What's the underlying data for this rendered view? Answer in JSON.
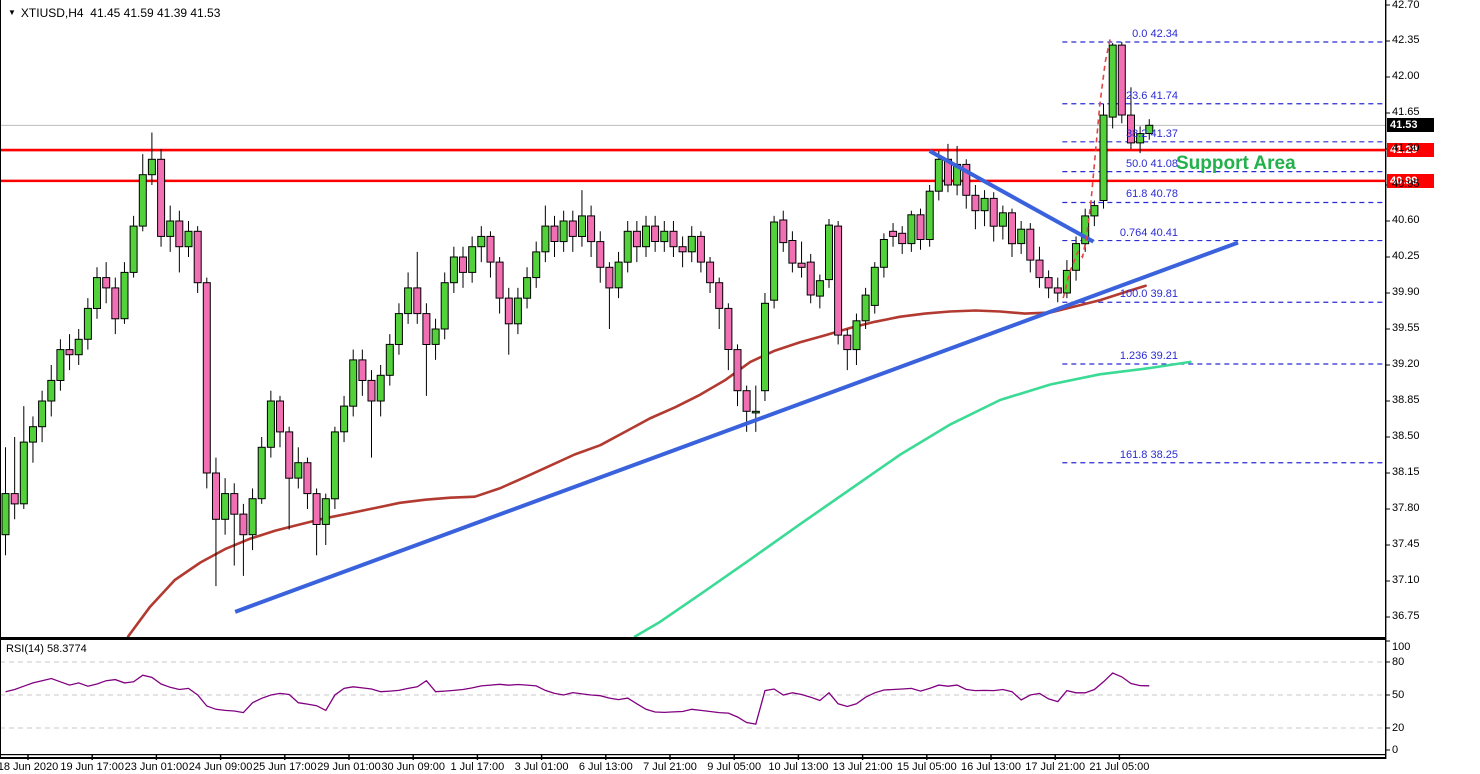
{
  "header": {
    "collapse_icon": "▼",
    "symbol": "XTIUSD,H4",
    "ohlc": "41.45 41.59 41.39 41.53"
  },
  "chart_data": {
    "type": "candlestick",
    "title": "XTIUSD H4 chart with RSI",
    "price_axis_ticks": [
      42.7,
      42.35,
      42.0,
      41.65,
      41.3,
      40.95,
      40.6,
      40.25,
      39.9,
      39.55,
      39.2,
      38.85,
      38.5,
      38.15,
      37.8,
      37.45,
      37.1,
      36.75
    ],
    "time_axis_labels": [
      "18 Jun 2020",
      "19 Jun 17:00",
      "23 Jun 01:00",
      "24 Jun 09:00",
      "25 Jun 17:00",
      "29 Jun 01:00",
      "30 Jun 09:00",
      "1 Jul 17:00",
      "3 Jul 01:00",
      "6 Jul 13:00",
      "7 Jul 21:00",
      "9 Jul 05:00",
      "10 Jul 13:00",
      "13 Jul 21:00",
      "15 Jul 05:00",
      "16 Jul 13:00",
      "17 Jul 21:00",
      "21 Jul 05:00"
    ],
    "current_price": 41.53,
    "price_badges": {
      "current": "41.53",
      "upper": "41.29",
      "lower": "40.99"
    },
    "horizontal_lines": [
      {
        "price": 41.29
      },
      {
        "price": 40.99
      }
    ],
    "support_area": {
      "text": "Support Area",
      "color": "#22B14C"
    },
    "fib": {
      "start_i": 115.5,
      "levels": [
        {
          "label": "0.0",
          "price": 42.34
        },
        {
          "label": "23.6",
          "price": 41.74
        },
        {
          "label": "38.2",
          "price": 41.37
        },
        {
          "label": "50.0",
          "price": 41.08
        },
        {
          "label": "61.8",
          "price": 40.78
        },
        {
          "label": "0.764",
          "price": 40.41
        },
        {
          "label": "100.0",
          "price": 39.81
        },
        {
          "label": "1.236",
          "price": 39.21
        },
        {
          "label": "161.8",
          "price": 38.25
        }
      ]
    },
    "trendlines": [
      {
        "name": "ascending",
        "i1": 25.1,
        "p1": 36.8,
        "i2": 134.7,
        "p2": 40.39
      },
      {
        "name": "descending",
        "i1": 101.0,
        "p1": 41.28,
        "i2": 118.9,
        "p2": 40.4
      }
    ],
    "impulse_arrow": [
      [
        115.6,
        39.85
      ],
      [
        116.3,
        40.1
      ],
      [
        117.2,
        40.3
      ],
      [
        117.7,
        40.25
      ],
      [
        118.1,
        40.42
      ],
      [
        118.6,
        40.76
      ],
      [
        119.1,
        41.25
      ],
      [
        119.6,
        41.73
      ],
      [
        120.2,
        42.15
      ],
      [
        120.8,
        42.4
      ]
    ],
    "ma_slow": [
      [
        13.4,
        36.56
      ],
      [
        15.8,
        36.85
      ],
      [
        18.5,
        37.11
      ],
      [
        21.3,
        37.28
      ],
      [
        24,
        37.41
      ],
      [
        26.7,
        37.51
      ],
      [
        29.5,
        37.59
      ],
      [
        32.2,
        37.65
      ],
      [
        34.9,
        37.71
      ],
      [
        37.7,
        37.76
      ],
      [
        40.4,
        37.81
      ],
      [
        43.1,
        37.86
      ],
      [
        45.9,
        37.89
      ],
      [
        48.6,
        37.91
      ],
      [
        51.3,
        37.92
      ],
      [
        54,
        38.0
      ],
      [
        56.8,
        38.11
      ],
      [
        59.5,
        38.22
      ],
      [
        62.2,
        38.33
      ],
      [
        65,
        38.42
      ],
      [
        67.7,
        38.55
      ],
      [
        70.4,
        38.68
      ],
      [
        73.2,
        38.79
      ],
      [
        75.9,
        38.91
      ],
      [
        78.6,
        39.05
      ],
      [
        81.4,
        39.23
      ],
      [
        84.1,
        39.34
      ],
      [
        86.8,
        39.42
      ],
      [
        89.6,
        39.49
      ],
      [
        92.3,
        39.56
      ],
      [
        95,
        39.62
      ],
      [
        97.8,
        39.67
      ],
      [
        100.5,
        39.7
      ],
      [
        103.2,
        39.72
      ],
      [
        106,
        39.73
      ],
      [
        108.7,
        39.72
      ],
      [
        111.4,
        39.7
      ],
      [
        114.2,
        39.71
      ],
      [
        116.9,
        39.77
      ],
      [
        119.6,
        39.83
      ],
      [
        122.4,
        39.91
      ],
      [
        124.6,
        39.97
      ]
    ],
    "ma_fast": [
      [
        68.8,
        36.56
      ],
      [
        71.5,
        36.7
      ],
      [
        75.9,
        36.97
      ],
      [
        81.4,
        37.31
      ],
      [
        86.8,
        37.65
      ],
      [
        92.3,
        37.99
      ],
      [
        97.8,
        38.33
      ],
      [
        103.2,
        38.62
      ],
      [
        108.7,
        38.86
      ],
      [
        114.2,
        39.01
      ],
      [
        119.6,
        39.11
      ],
      [
        125,
        39.17
      ],
      [
        129.5,
        39.23
      ]
    ],
    "colors": {
      "bull": "#52D13A",
      "bear": "#F16FB3",
      "wick": "#000000",
      "red_line": "#FE0000",
      "fib": "#2B2BD5",
      "trendline": "#3A62DC",
      "ma_slow": "#B23A30",
      "ma_fast": "#3BDB96",
      "rsi": "#800080",
      "current_price_line": "#BBBBBB",
      "badge_current_bg": "#000000",
      "badge_level_bg": "#FE0000",
      "arrow": "#E04545"
    },
    "candles": [
      [
        37.55,
        38.4,
        37.35,
        37.95
      ],
      [
        37.95,
        38.5,
        37.7,
        37.85
      ],
      [
        37.85,
        38.8,
        37.8,
        38.45
      ],
      [
        38.45,
        38.7,
        38.25,
        38.6
      ],
      [
        38.6,
        38.95,
        38.45,
        38.85
      ],
      [
        38.85,
        39.2,
        38.7,
        39.05
      ],
      [
        39.05,
        39.45,
        38.95,
        39.35
      ],
      [
        39.35,
        39.5,
        39.15,
        39.3
      ],
      [
        39.3,
        39.55,
        39.2,
        39.45
      ],
      [
        39.45,
        39.85,
        39.35,
        39.75
      ],
      [
        39.75,
        40.15,
        39.65,
        40.05
      ],
      [
        40.05,
        40.2,
        39.8,
        39.95
      ],
      [
        39.95,
        40.05,
        39.5,
        39.65
      ],
      [
        39.65,
        40.2,
        39.6,
        40.1
      ],
      [
        40.1,
        40.65,
        40.05,
        40.55
      ],
      [
        40.55,
        41.25,
        40.5,
        41.05
      ],
      [
        41.05,
        41.46,
        40.95,
        41.2
      ],
      [
        41.2,
        41.3,
        40.35,
        40.45
      ],
      [
        40.45,
        40.75,
        40.3,
        40.6
      ],
      [
        40.6,
        40.7,
        40.1,
        40.35
      ],
      [
        40.35,
        40.6,
        40.25,
        40.5
      ],
      [
        40.5,
        40.55,
        39.9,
        40.0
      ],
      [
        40.0,
        40.05,
        38.0,
        38.15
      ],
      [
        38.15,
        38.3,
        37.05,
        37.7
      ],
      [
        37.7,
        38.1,
        37.55,
        37.95
      ],
      [
        37.95,
        38.05,
        37.25,
        37.75
      ],
      [
        37.75,
        37.85,
        37.15,
        37.55
      ],
      [
        37.55,
        38.0,
        37.4,
        37.9
      ],
      [
        37.9,
        38.5,
        37.85,
        38.4
      ],
      [
        38.4,
        38.95,
        38.3,
        38.85
      ],
      [
        38.85,
        38.9,
        38.4,
        38.55
      ],
      [
        38.55,
        38.6,
        37.6,
        38.1
      ],
      [
        38.1,
        38.4,
        38.0,
        38.25
      ],
      [
        38.25,
        38.3,
        37.8,
        37.95
      ],
      [
        37.95,
        38.0,
        37.35,
        37.65
      ],
      [
        37.65,
        37.95,
        37.45,
        37.9
      ],
      [
        37.9,
        38.6,
        37.8,
        38.55
      ],
      [
        38.55,
        38.9,
        38.45,
        38.8
      ],
      [
        38.8,
        39.35,
        38.7,
        39.25
      ],
      [
        39.25,
        39.35,
        38.9,
        39.05
      ],
      [
        39.05,
        39.15,
        38.3,
        38.85
      ],
      [
        38.85,
        39.2,
        38.7,
        39.1
      ],
      [
        39.1,
        39.5,
        39.0,
        39.4
      ],
      [
        39.4,
        39.8,
        39.3,
        39.7
      ],
      [
        39.7,
        40.1,
        39.6,
        39.95
      ],
      [
        39.95,
        40.3,
        39.6,
        39.7
      ],
      [
        39.7,
        39.8,
        38.9,
        39.4
      ],
      [
        39.4,
        39.65,
        39.25,
        39.55
      ],
      [
        39.55,
        40.1,
        39.45,
        40.0
      ],
      [
        40.0,
        40.35,
        39.9,
        40.25
      ],
      [
        40.25,
        40.35,
        39.95,
        40.1
      ],
      [
        40.1,
        40.45,
        40.0,
        40.35
      ],
      [
        40.35,
        40.55,
        40.2,
        40.45
      ],
      [
        40.45,
        40.5,
        40.05,
        40.2
      ],
      [
        40.2,
        40.25,
        39.7,
        39.85
      ],
      [
        39.85,
        39.95,
        39.3,
        39.6
      ],
      [
        39.6,
        39.95,
        39.5,
        39.85
      ],
      [
        39.85,
        40.15,
        39.75,
        40.05
      ],
      [
        40.05,
        40.4,
        39.95,
        40.3
      ],
      [
        40.3,
        40.75,
        40.2,
        40.55
      ],
      [
        40.55,
        40.65,
        40.25,
        40.4
      ],
      [
        40.4,
        40.7,
        40.3,
        40.6
      ],
      [
        40.6,
        40.7,
        40.3,
        40.45
      ],
      [
        40.45,
        40.9,
        40.35,
        40.65
      ],
      [
        40.65,
        40.75,
        40.25,
        40.4
      ],
      [
        40.4,
        40.5,
        40.0,
        40.15
      ],
      [
        40.15,
        40.2,
        39.55,
        39.95
      ],
      [
        39.95,
        40.3,
        39.85,
        40.2
      ],
      [
        40.2,
        40.6,
        40.1,
        40.5
      ],
      [
        40.5,
        40.6,
        40.2,
        40.35
      ],
      [
        40.35,
        40.65,
        40.25,
        40.55
      ],
      [
        40.55,
        40.65,
        40.3,
        40.4
      ],
      [
        40.4,
        40.6,
        40.3,
        40.5
      ],
      [
        40.5,
        40.6,
        40.25,
        40.35
      ],
      [
        40.35,
        40.45,
        40.15,
        40.3
      ],
      [
        40.3,
        40.55,
        40.2,
        40.45
      ],
      [
        40.45,
        40.5,
        40.1,
        40.2
      ],
      [
        40.2,
        40.25,
        39.9,
        40.0
      ],
      [
        40.0,
        40.05,
        39.55,
        39.75
      ],
      [
        39.75,
        39.8,
        39.15,
        39.35
      ],
      [
        39.35,
        39.4,
        38.8,
        38.95
      ],
      [
        38.95,
        39.0,
        38.55,
        38.75
      ],
      [
        38.75,
        39.0,
        38.55,
        38.75
      ],
      [
        38.95,
        39.9,
        38.85,
        39.8
      ],
      [
        39.83,
        40.65,
        39.75,
        40.59
      ],
      [
        40.61,
        40.7,
        40.3,
        40.39
      ],
      [
        40.41,
        40.5,
        40.1,
        40.19
      ],
      [
        40.19,
        40.4,
        40.05,
        40.15
      ],
      [
        40.2,
        40.28,
        39.8,
        39.88
      ],
      [
        39.87,
        40.08,
        39.75,
        40.02
      ],
      [
        40.03,
        40.62,
        39.95,
        40.56
      ],
      [
        40.55,
        40.6,
        39.4,
        39.49
      ],
      [
        39.49,
        39.55,
        39.15,
        39.35
      ],
      [
        39.35,
        39.7,
        39.2,
        39.63
      ],
      [
        39.63,
        39.95,
        39.55,
        39.88
      ],
      [
        39.78,
        40.2,
        39.7,
        40.15
      ],
      [
        40.15,
        40.48,
        40.05,
        40.42
      ],
      [
        40.5,
        40.58,
        40.35,
        40.45
      ],
      [
        40.48,
        40.55,
        40.28,
        40.38
      ],
      [
        40.38,
        40.7,
        40.3,
        40.66
      ],
      [
        40.66,
        40.72,
        40.32,
        40.42
      ],
      [
        40.42,
        40.95,
        40.35,
        40.89
      ],
      [
        40.89,
        41.28,
        40.8,
        41.2
      ],
      [
        41.2,
        41.35,
        40.88,
        40.95
      ],
      [
        40.95,
        41.33,
        40.85,
        41.15
      ],
      [
        41.15,
        41.2,
        40.72,
        40.85
      ],
      [
        40.85,
        40.95,
        40.52,
        40.7
      ],
      [
        40.7,
        40.9,
        40.55,
        40.82
      ],
      [
        40.82,
        40.88,
        40.4,
        40.55
      ],
      [
        40.55,
        40.75,
        40.42,
        40.68
      ],
      [
        40.68,
        40.72,
        40.25,
        40.38
      ],
      [
        40.38,
        40.6,
        40.28,
        40.52
      ],
      [
        40.52,
        40.58,
        40.1,
        40.22
      ],
      [
        40.22,
        40.35,
        39.95,
        40.05
      ],
      [
        40.05,
        40.12,
        39.85,
        39.95
      ],
      [
        39.95,
        40.05,
        39.81,
        39.9
      ],
      [
        39.9,
        40.22,
        39.85,
        40.12
      ],
      [
        40.12,
        40.45,
        40.02,
        40.38
      ],
      [
        40.38,
        40.72,
        40.3,
        40.65
      ],
      [
        40.65,
        40.8,
        40.55,
        40.75
      ],
      [
        40.8,
        41.74,
        40.72,
        41.63
      ],
      [
        41.61,
        42.33,
        41.5,
        42.31
      ],
      [
        42.31,
        42.34,
        41.55,
        41.63
      ],
      [
        41.63,
        41.9,
        41.3,
        41.36
      ],
      [
        41.36,
        41.52,
        41.26,
        41.45
      ],
      [
        41.45,
        41.59,
        41.39,
        41.53
      ]
    ],
    "rsi": {
      "label": "RSI(14) 58.3774",
      "period": 14,
      "value": 58.3774,
      "scale_labels": [
        100,
        80,
        50,
        20,
        0
      ],
      "gridlines": [
        80,
        50,
        20
      ],
      "values": [
        53,
        55,
        58,
        61,
        63,
        65,
        62,
        59,
        61,
        58,
        60,
        63,
        64,
        61,
        62,
        68,
        66,
        60,
        57,
        55,
        56,
        50,
        40,
        37,
        36,
        35.5,
        34,
        43,
        47,
        50,
        51.5,
        50.5,
        43,
        41.7,
        40.3,
        36,
        50,
        56,
        57.5,
        56.5,
        55.5,
        53,
        53.5,
        54.2,
        56,
        57.5,
        63,
        53,
        53.5,
        54.2,
        55,
        56.5,
        58.3,
        59,
        59.7,
        58.9,
        59.5,
        59,
        58.3,
        54.2,
        51.5,
        50,
        52.2,
        51,
        50,
        49.4,
        47.2,
        45.8,
        47.2,
        42,
        37,
        34.5,
        34.2,
        34.6,
        35,
        37,
        36,
        35,
        34,
        33.5,
        30,
        25,
        23.5,
        54,
        55.5,
        50,
        52,
        50.5,
        48,
        45,
        52,
        42,
        39.5,
        42,
        48,
        52,
        54.5,
        55,
        55.5,
        56,
        53.5,
        56,
        59,
        58,
        59,
        55,
        54,
        54.2,
        54,
        55,
        53,
        45.5,
        50,
        51.5,
        46.5,
        44,
        54,
        52,
        52,
        55,
        62,
        70,
        66.5,
        60.5,
        58.5,
        58.4
      ]
    }
  }
}
